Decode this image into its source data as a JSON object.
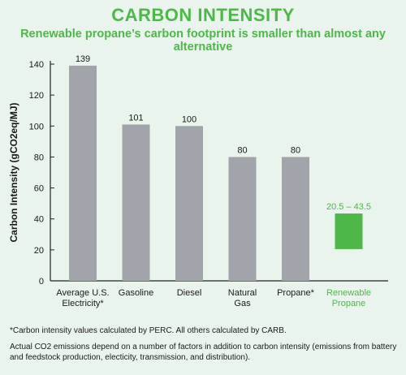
{
  "header": {
    "title": "CARBON INTENSITY",
    "subtitle": "Renewable propane’s carbon footprint is smaller than almost any alternative"
  },
  "chart_data": {
    "type": "bar",
    "title": "CARBON INTENSITY",
    "subtitle": "Renewable propane’s carbon footprint is smaller than almost any alternative",
    "ylabel": "Carbon Intensity (gCO2eq/MJ)",
    "xlabel": "",
    "ylim": [
      0,
      140
    ],
    "yticks": [
      0,
      20,
      40,
      60,
      80,
      100,
      120,
      140
    ],
    "grid": false,
    "categories": [
      [
        "Average U.S.",
        "Electricity*"
      ],
      [
        "Gasoline"
      ],
      [
        "Diesel"
      ],
      [
        "Natural",
        "Gas"
      ],
      [
        "Propane*"
      ],
      [
        "Renewable",
        "Propane"
      ]
    ],
    "bars": [
      {
        "low": 0,
        "high": 139,
        "label": "139",
        "color": "#a1a4ab"
      },
      {
        "low": 0,
        "high": 101,
        "label": "101",
        "color": "#a1a4ab"
      },
      {
        "low": 0,
        "high": 100,
        "label": "100",
        "color": "#a1a4ab"
      },
      {
        "low": 0,
        "high": 80,
        "label": "80",
        "color": "#a1a4ab"
      },
      {
        "low": 0,
        "high": 80,
        "label": "80",
        "color": "#a1a4ab"
      },
      {
        "low": 20.5,
        "high": 43.5,
        "label": "20.5 – 43.5",
        "color": "#4db848"
      }
    ],
    "highlight_color": "#4db848",
    "text_color": "#1a1a1a"
  },
  "footnotes": {
    "note1": "*Carbon intensity values calculated by PERC. All others calculated by CARB.",
    "note2": "Actual CO2 emissions depend on a number of factors in addition to carbon intensity (emissions from battery and feedstock production, electicity, transmission, and distribution)."
  }
}
